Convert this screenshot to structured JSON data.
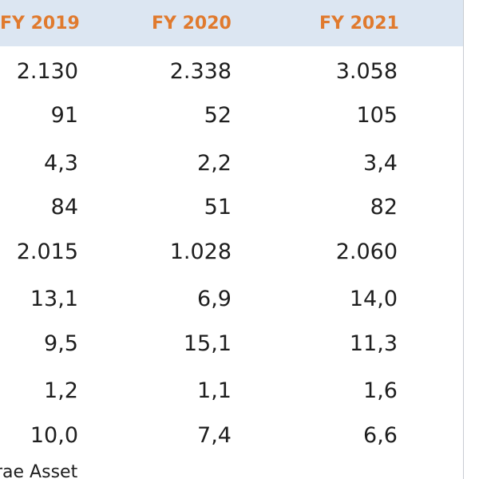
{
  "table": {
    "headers": [
      "FY 2019",
      "FY 2020",
      "FY 2021"
    ],
    "rows": [
      [
        "2.130",
        "2.338",
        "3.058"
      ],
      [
        "91",
        "52",
        "105"
      ],
      [
        "4,3",
        "2,2",
        "3,4"
      ],
      [
        "84",
        "51",
        "82"
      ],
      [
        "2.015",
        "1.028",
        "2.060"
      ],
      [
        "13,1",
        "6,9",
        "14,0"
      ],
      [
        "9,5",
        "15,1",
        "11,3"
      ],
      [
        "1,2",
        "1,1",
        "1,6"
      ],
      [
        "10,0",
        "7,4",
        "6,6"
      ]
    ]
  },
  "footer": {
    "text": "rae Asset"
  },
  "colors": {
    "header_bg": "#dce6f2",
    "header_text": "#e07a2e",
    "cell_text": "#1e1e1e"
  }
}
